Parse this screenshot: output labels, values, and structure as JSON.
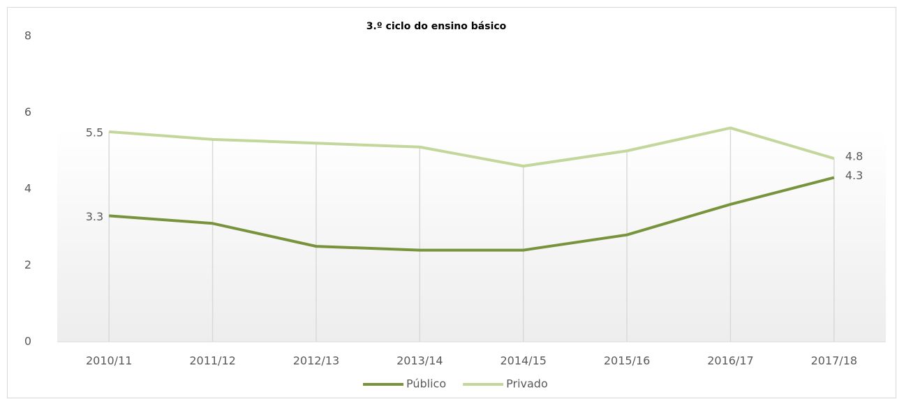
{
  "chart_data": {
    "type": "line",
    "title": "3.º ciclo do ensino básico",
    "categories": [
      "2010/11",
      "2011/12",
      "2012/13",
      "2013/14",
      "2014/15",
      "2015/16",
      "2016/17",
      "2017/18"
    ],
    "series": [
      {
        "name": "Público",
        "color": "#77933c",
        "values": [
          3.3,
          3.1,
          2.5,
          2.4,
          2.4,
          2.8,
          3.6,
          4.3
        ]
      },
      {
        "name": "Privado",
        "color": "#c3d69b",
        "values": [
          5.5,
          5.3,
          5.2,
          5.1,
          4.6,
          5.0,
          5.6,
          4.8
        ]
      }
    ],
    "data_labels": [
      0,
      7
    ],
    "ylim": [
      0,
      8
    ],
    "yticks": [
      0,
      2,
      4,
      6,
      8
    ],
    "legend": "bottom",
    "drop_lines": true
  }
}
